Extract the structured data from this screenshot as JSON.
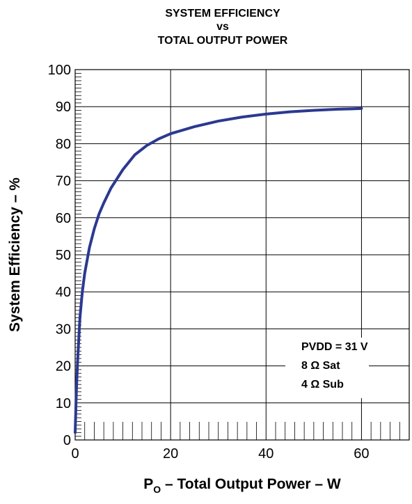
{
  "chart_data": {
    "type": "line",
    "title_lines": [
      "SYSTEM EFFICIENCY",
      "vs",
      "TOTAL OUTPUT POWER"
    ],
    "xlabel": {
      "prefix": "P",
      "subscript": "O",
      "suffix": " – Total Output Power – W"
    },
    "ylabel": "System Efficiency – %",
    "xlim": [
      0,
      70
    ],
    "ylim": [
      0,
      100
    ],
    "x_ticks": [
      0,
      20,
      40,
      60
    ],
    "x_tick_labels": [
      "0",
      "20",
      "40",
      "60"
    ],
    "y_ticks": [
      0,
      10,
      20,
      30,
      40,
      50,
      60,
      70,
      80,
      90,
      100
    ],
    "y_tick_labels": [
      "0",
      "10",
      "20",
      "30",
      "40",
      "50",
      "60",
      "70",
      "80",
      "90",
      "100"
    ],
    "grid": true,
    "annotation": {
      "lines": [
        "PVDD = 31 V",
        "8 Ω Sat",
        "4 Ω Sub"
      ]
    },
    "colors": {
      "series": "#2b3990",
      "grid": "#000000"
    },
    "series": [
      {
        "x": [
          0.0,
          0.25,
          0.5,
          1.0,
          1.5,
          2.0,
          3.0,
          4.0,
          5.0,
          6.0,
          7.5,
          10.0,
          12.5,
          15.0,
          17.5,
          20.0,
          25.0,
          30.0,
          35.0,
          40.0,
          45.0,
          50.0,
          55.0,
          58.0,
          60.0
        ],
        "y": [
          2.0,
          13.0,
          21.0,
          33.0,
          40.0,
          45.0,
          52.0,
          57.0,
          61.0,
          64.0,
          68.0,
          73.0,
          77.0,
          79.5,
          81.3,
          82.7,
          84.6,
          86.1,
          87.2,
          88.0,
          88.6,
          89.0,
          89.3,
          89.4,
          89.5
        ]
      }
    ]
  }
}
